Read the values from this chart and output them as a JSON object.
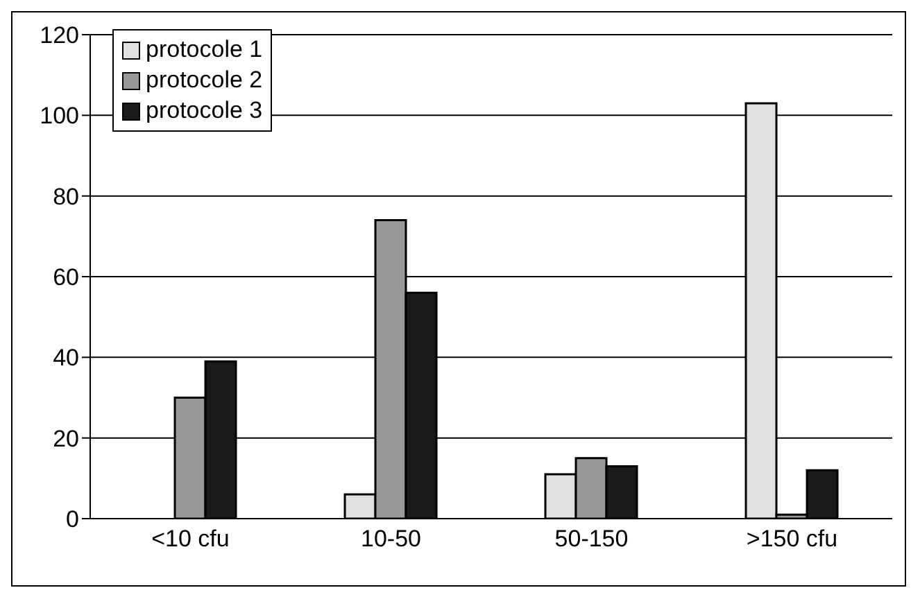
{
  "chart_data": {
    "type": "bar",
    "categories": [
      "<10 cfu",
      "10-50",
      "50-150",
      ">150 cfu"
    ],
    "series": [
      {
        "name": "protocole 1",
        "color": "#e0e0e0",
        "values": [
          0,
          6,
          11,
          103
        ]
      },
      {
        "name": "protocole 2",
        "color": "#999999",
        "values": [
          30,
          74,
          15,
          1
        ]
      },
      {
        "name": "protocole 3",
        "color": "#1a1a1a",
        "values": [
          39,
          56,
          13,
          12
        ]
      }
    ],
    "ylim": [
      0,
      120
    ],
    "yticks": [
      0,
      20,
      40,
      60,
      80,
      100,
      120
    ],
    "grid": "y",
    "legend": "top left"
  }
}
